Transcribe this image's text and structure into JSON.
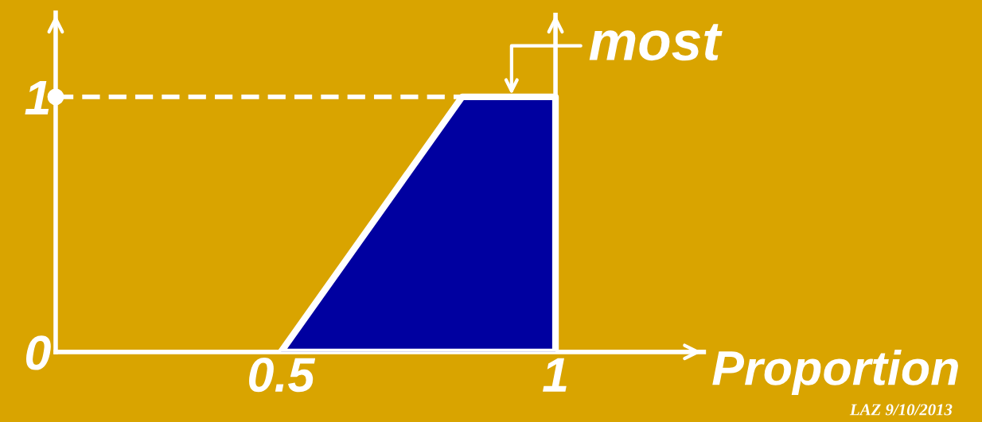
{
  "chart_data": {
    "type": "area",
    "xlabel": "Proportion",
    "x": [
      0.5,
      0.83,
      1.0,
      1.0
    ],
    "series": [
      {
        "color": "#0000a0",
        "values": [
          0,
          1,
          1,
          0
        ]
      },
      {
        "type": "scatter",
        "color": "#ffffff",
        "x": [
          0.09
        ],
        "values": [
          1
        ],
        "marker": "circle"
      }
    ],
    "xlim": [
      0.09,
      1.27
    ],
    "ylim": [
      0,
      1.33
    ],
    "xticks": [
      0.5,
      1
    ],
    "yticks": [
      0,
      1
    ],
    "grid": false,
    "ref_lines": [
      {
        "axis": "y",
        "value": 1,
        "line_style": "dashed",
        "color": "#ffffff"
      },
      {
        "axis": "x",
        "value": 1,
        "line_style": "solid",
        "color": "#ffffff"
      }
    ],
    "annotations": [
      {
        "text": "most",
        "x": 0.92,
        "y": 1
      },
      "LAZ 9/10/2013"
    ]
  }
}
